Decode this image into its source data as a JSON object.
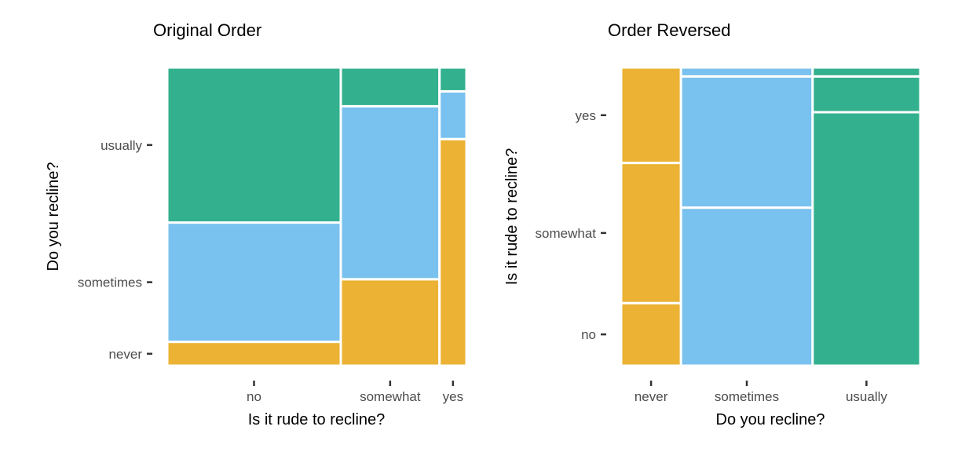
{
  "chart_data": [
    {
      "type": "mosaic",
      "title": "Original Order",
      "xlabel": "Is it rude to recline?",
      "ylabel": "Do you recline?",
      "x_categories": [
        "no",
        "somewhat",
        "yes"
      ],
      "x_widths": [
        0.58,
        0.33,
        0.09
      ],
      "y_categories": [
        "never",
        "sometimes",
        "usually"
      ],
      "fractions": [
        [
          0.08,
          0.4,
          0.52
        ],
        [
          0.29,
          0.58,
          0.13
        ],
        [
          0.76,
          0.16,
          0.08
        ]
      ],
      "colors": {
        "never": "#EBB233",
        "sometimes": "#79C1EE",
        "usually": "#33B08D"
      },
      "y_tick_categories": [
        "never",
        "sometimes",
        "usually"
      ]
    },
    {
      "type": "mosaic",
      "title": "Order Reversed",
      "xlabel": "Do you recline?",
      "ylabel": "Is it rude to recline?",
      "x_categories": [
        "never",
        "sometimes",
        "usually"
      ],
      "x_widths": [
        0.2,
        0.44,
        0.36
      ],
      "y_categories": [
        "no",
        "somewhat",
        "yes"
      ],
      "fractions": [
        [
          0.21,
          0.47,
          0.32
        ],
        [
          0.53,
          0.44,
          0.03
        ],
        [
          0.85,
          0.12,
          0.03
        ]
      ],
      "x_colors": {
        "never": "#EBB233",
        "sometimes": "#79C1EE",
        "usually": "#33B08D"
      },
      "y_tick_categories": [
        "no",
        "somewhat",
        "yes"
      ]
    }
  ]
}
